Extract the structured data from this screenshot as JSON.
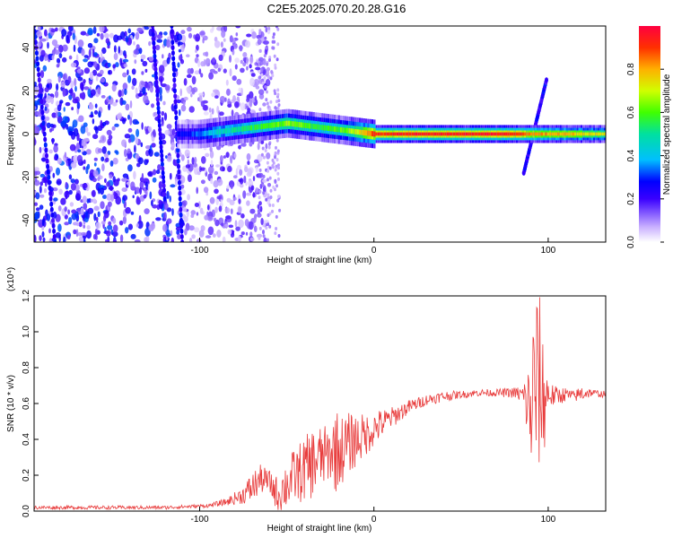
{
  "title": "C2E5.2025.070.20.28.G16",
  "chart_data": [
    {
      "type": "heatmap",
      "xlabel": "Height of straight line (km)",
      "ylabel": "Frequency (Hz)",
      "xlim": [
        -195,
        133
      ],
      "ylim": [
        -50,
        50
      ],
      "xticks": [
        -100,
        0,
        100
      ],
      "yticks": [
        -40,
        -20,
        0,
        20,
        40
      ],
      "colorbar": {
        "label": "Normalized spectral amplitude",
        "range": [
          0,
          1
        ],
        "ticks": [
          0.0,
          0.2,
          0.4,
          0.6,
          0.8
        ]
      },
      "ridge": {
        "x": [
          -110,
          -100,
          -90,
          -80,
          -70,
          -60,
          -50,
          -40,
          -30,
          -20,
          -10,
          0,
          20,
          40,
          60,
          80,
          90,
          100,
          110,
          120,
          133
        ],
        "freq": [
          0,
          0,
          1,
          2,
          3,
          4,
          5,
          4,
          3,
          2,
          1,
          0,
          0,
          0,
          0,
          0,
          0,
          0,
          0,
          0,
          0
        ],
        "amplitude": [
          0.25,
          0.35,
          0.45,
          0.5,
          0.55,
          0.6,
          0.65,
          0.6,
          0.55,
          0.6,
          0.7,
          0.9,
          0.95,
          0.95,
          0.95,
          0.95,
          0.85,
          0.8,
          0.8,
          0.75,
          0.7
        ]
      },
      "diagonal_features": [
        {
          "x": [
            -195,
            -183
          ],
          "freq": [
            50,
            -50
          ]
        },
        {
          "x": [
            -127,
            -120
          ],
          "freq": [
            50,
            -30
          ]
        },
        {
          "x": [
            -116,
            -110
          ],
          "freq": [
            50,
            -50
          ]
        },
        {
          "x": [
            86,
            99
          ],
          "freq": [
            -18,
            25
          ]
        }
      ],
      "grid": false
    },
    {
      "type": "line",
      "xlabel": "Height of straight line (km)",
      "ylabel": "SNR (10 * v/v)",
      "y_multiplier": "(x10⁴)",
      "xlim": [
        -195,
        133
      ],
      "ylim": [
        0,
        1.2
      ],
      "xticks": [
        -100,
        0,
        100
      ],
      "yticks": [
        0.0,
        0.2,
        0.4,
        0.6,
        0.8,
        1.0,
        1.2
      ],
      "color": "#e83c3c",
      "series": [
        {
          "name": "",
          "x": [
            -195,
            -160,
            -120,
            -95,
            -85,
            -75,
            -70,
            -65,
            -60,
            -55,
            -50,
            -45,
            -40,
            -35,
            -30,
            -25,
            -22,
            -20,
            -15,
            -10,
            -5,
            0,
            5,
            10,
            15,
            20,
            30,
            40,
            50,
            60,
            70,
            80,
            85,
            88,
            90,
            92,
            95,
            97,
            100,
            103,
            110,
            115,
            120,
            125,
            133
          ],
          "y": [
            0.02,
            0.02,
            0.02,
            0.03,
            0.05,
            0.09,
            0.13,
            0.18,
            0.16,
            0.09,
            0.15,
            0.2,
            0.23,
            0.27,
            0.3,
            0.32,
            0.35,
            0.33,
            0.37,
            0.4,
            0.42,
            0.46,
            0.49,
            0.52,
            0.55,
            0.58,
            0.62,
            0.64,
            0.65,
            0.66,
            0.66,
            0.66,
            0.65,
            0.6,
            0.55,
            0.68,
            0.72,
            0.62,
            0.66,
            0.64,
            0.65,
            0.64,
            0.66,
            0.66,
            0.65
          ],
          "amplitude": [
            0.01,
            0.01,
            0.01,
            0.01,
            0.02,
            0.05,
            0.09,
            0.08,
            0.07,
            0.1,
            0.14,
            0.16,
            0.18,
            0.2,
            0.18,
            0.15,
            0.25,
            0.2,
            0.18,
            0.15,
            0.12,
            0.1,
            0.08,
            0.06,
            0.05,
            0.04,
            0.03,
            0.03,
            0.02,
            0.02,
            0.02,
            0.03,
            0.05,
            0.2,
            0.35,
            0.55,
            0.5,
            0.4,
            0.1,
            0.06,
            0.04,
            0.03,
            0.05,
            0.02,
            0.02
          ]
        }
      ],
      "grid": false
    }
  ]
}
